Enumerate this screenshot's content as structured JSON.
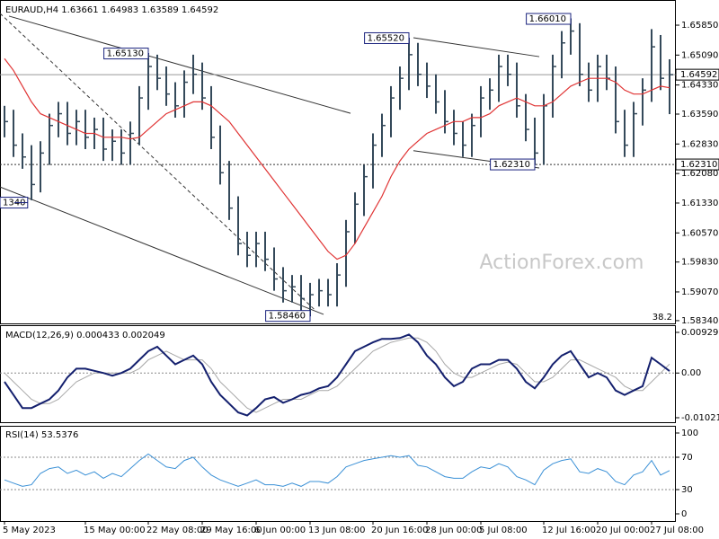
{
  "chart_data": {
    "type": "ohlc",
    "title": "EURAUD,H4  1.63661 1.64983 1.63589 1.64592",
    "watermark": "ActionForex.com",
    "fib_label": "38.2",
    "bar_color": "#34495a",
    "categories": [
      "5 May 2023",
      null,
      null,
      null,
      null,
      null,
      null,
      null,
      null,
      "15 May 00:00",
      null,
      null,
      null,
      null,
      null,
      null,
      "22 May 08:00",
      null,
      null,
      null,
      null,
      null,
      "29 May 16:00",
      null,
      null,
      null,
      null,
      null,
      "6 Jun 00:00",
      null,
      null,
      null,
      null,
      null,
      "13 Jun 08:00",
      null,
      null,
      null,
      null,
      null,
      null,
      "20 Jun 16:00",
      null,
      null,
      null,
      null,
      null,
      "28 Jun 00:00",
      null,
      null,
      null,
      null,
      null,
      "5 Jul 08:00",
      null,
      null,
      null,
      null,
      null,
      null,
      "12 Jul 16:00",
      null,
      null,
      null,
      null,
      null,
      "20 Jul 00:00",
      null,
      null,
      null,
      null,
      null,
      "27 Jul 08:00",
      null,
      null
    ],
    "high": [
      1.638,
      1.637,
      1.631,
      1.628,
      1.629,
      1.636,
      1.639,
      1.639,
      1.637,
      1.637,
      1.635,
      1.635,
      1.632,
      1.632,
      1.634,
      1.643,
      1.6513,
      1.651,
      1.648,
      1.644,
      1.647,
      1.651,
      1.649,
      1.643,
      1.633,
      1.624,
      1.615,
      1.606,
      1.606,
      1.606,
      1.602,
      1.597,
      1.595,
      1.595,
      1.593,
      1.594,
      1.594,
      1.598,
      1.609,
      1.616,
      1.623,
      1.631,
      1.636,
      1.643,
      1.648,
      1.6552,
      1.654,
      1.649,
      1.646,
      1.642,
      1.637,
      1.634,
      1.636,
      1.643,
      1.645,
      1.651,
      1.651,
      1.649,
      1.641,
      1.635,
      1.641,
      1.651,
      1.657,
      1.6601,
      1.659,
      1.649,
      1.651,
      1.651,
      1.648,
      1.637,
      1.639,
      1.645,
      1.6575,
      1.656,
      1.64983
    ],
    "low": [
      1.63,
      1.625,
      1.622,
      1.614,
      1.616,
      1.623,
      1.63,
      1.628,
      1.628,
      1.627,
      1.627,
      1.624,
      1.624,
      1.623,
      1.623,
      1.628,
      1.637,
      1.642,
      1.638,
      1.635,
      1.635,
      1.641,
      1.637,
      1.627,
      1.618,
      1.609,
      1.6,
      1.597,
      1.597,
      1.596,
      1.591,
      1.588,
      1.588,
      1.586,
      1.5846,
      1.587,
      1.587,
      1.587,
      1.592,
      1.603,
      1.61,
      1.617,
      1.625,
      1.63,
      1.637,
      1.642,
      1.643,
      1.64,
      1.636,
      1.631,
      1.628,
      1.625,
      1.625,
      1.63,
      1.637,
      1.639,
      1.643,
      1.635,
      1.629,
      1.6231,
      1.623,
      1.635,
      1.645,
      1.651,
      1.643,
      1.639,
      1.639,
      1.642,
      1.631,
      1.625,
      1.625,
      1.633,
      1.639,
      1.642,
      1.63589
    ],
    "close": [
      1.634,
      1.628,
      1.625,
      1.618,
      1.626,
      1.633,
      1.636,
      1.631,
      1.634,
      1.63,
      1.632,
      1.627,
      1.629,
      1.626,
      1.631,
      1.64,
      1.648,
      1.645,
      1.641,
      1.638,
      1.644,
      1.646,
      1.64,
      1.63,
      1.621,
      1.612,
      1.603,
      1.6,
      1.603,
      1.599,
      1.594,
      1.591,
      1.592,
      1.589,
      1.59,
      1.591,
      1.59,
      1.595,
      1.606,
      1.613,
      1.62,
      1.628,
      1.633,
      1.64,
      1.645,
      1.651,
      1.646,
      1.643,
      1.639,
      1.634,
      1.631,
      1.628,
      1.633,
      1.64,
      1.642,
      1.648,
      1.646,
      1.638,
      1.632,
      1.626,
      1.638,
      1.648,
      1.654,
      1.657,
      1.646,
      1.642,
      1.648,
      1.645,
      1.634,
      1.628,
      1.636,
      1.642,
      1.653,
      1.645,
      1.64592
    ],
    "ma": {
      "color": "#e03434",
      "values": [
        1.65,
        1.647,
        1.643,
        1.639,
        1.636,
        1.635,
        1.634,
        1.633,
        1.632,
        1.631,
        1.631,
        1.63,
        1.63,
        1.63,
        1.6296,
        1.63,
        1.632,
        1.634,
        1.636,
        1.637,
        1.638,
        1.639,
        1.639,
        1.638,
        1.636,
        1.634,
        1.631,
        1.628,
        1.625,
        1.622,
        1.619,
        1.616,
        1.613,
        1.61,
        1.607,
        1.604,
        1.601,
        1.599,
        1.6,
        1.603,
        1.607,
        1.611,
        1.615,
        1.62,
        1.624,
        1.627,
        1.629,
        1.631,
        1.632,
        1.633,
        1.634,
        1.634,
        1.635,
        1.635,
        1.636,
        1.638,
        1.639,
        1.64,
        1.639,
        1.638,
        1.638,
        1.639,
        1.641,
        1.643,
        1.644,
        1.645,
        1.645,
        1.645,
        1.644,
        1.642,
        1.641,
        1.641,
        1.642,
        1.643,
        1.6426
      ]
    },
    "ylim": [
      1.5827,
      1.6649
    ],
    "yticks": [
      {
        "value": 1.6585,
        "label": "1.65850"
      },
      {
        "value": 1.6509,
        "label": "1.65090"
      },
      {
        "value": 1.6433,
        "label": "1.64330"
      },
      {
        "value": 1.6359,
        "label": "1.63590"
      },
      {
        "value": 1.6283,
        "label": "1.62830"
      },
      {
        "value": 1.6208,
        "label": "1.62080"
      },
      {
        "value": 1.6133,
        "label": "1.61330"
      },
      {
        "value": 1.6057,
        "label": "1.60570"
      },
      {
        "value": 1.5983,
        "label": "1.59830"
      },
      {
        "value": 1.5907,
        "label": "1.59070"
      },
      {
        "value": 1.5834,
        "label": "1.58340"
      }
    ],
    "price_marks": [
      {
        "value": 1.64592,
        "label": "1.64592",
        "style": "solid"
      },
      {
        "value": 1.6231,
        "label": "1.62310",
        "style": "dotted"
      }
    ],
    "annotations": [
      {
        "index": 63,
        "value": 1.6601,
        "label": "1.66010"
      },
      {
        "index": 45,
        "value": 1.6552,
        "label": "1.65520"
      },
      {
        "index": 16,
        "value": 1.6513,
        "label": "1.65130"
      },
      {
        "index": 59,
        "value": 1.6231,
        "label": "1.62310"
      },
      {
        "index": 34,
        "value": 1.5846,
        "label": "1.58460"
      },
      {
        "index": 1,
        "value": 1.6134,
        "label": "1340"
      }
    ],
    "trendlines": [
      {
        "x": [
          0.5,
          38.5
        ],
        "y": [
          1.6608,
          1.6361
        ],
        "style": "solid"
      },
      {
        "x": [
          -0.5,
          35.5
        ],
        "y": [
          1.6174,
          1.585
        ],
        "style": "solid"
      },
      {
        "x": [
          -0.5,
          34.5
        ],
        "y": [
          1.6615,
          1.5862
        ],
        "style": "dashed"
      },
      {
        "x": [
          45.5,
          59.5
        ],
        "y": [
          1.6553,
          1.6505
        ],
        "style": "solid"
      },
      {
        "x": [
          45.5,
          59.5
        ],
        "y": [
          1.6266,
          1.6222
        ],
        "style": "solid"
      }
    ],
    "macd": {
      "title": "MACD(12,26,9) 0.000433 0.002049",
      "ylim": [
        -0.01124,
        0.01093
      ],
      "yticks": [
        0.009291,
        {
          "value": 0,
          "label": "0.00"
        },
        -0.010211
      ],
      "series": [
        {
          "name": "MACD",
          "color": "#14206e",
          "values": [
            -0.002,
            -0.005,
            -0.008,
            -0.008,
            -0.007,
            -0.006,
            -0.004,
            -0.001,
            0.001,
            0.001,
            0.0005,
            0.0,
            -0.0006,
            0.0,
            0.001,
            0.003,
            0.005,
            0.006,
            0.004,
            0.002,
            0.003,
            0.004,
            0.002,
            -0.002,
            -0.005,
            -0.007,
            -0.009,
            -0.0097,
            -0.008,
            -0.006,
            -0.0055,
            -0.0068,
            -0.006,
            -0.005,
            -0.0045,
            -0.0035,
            -0.003,
            -0.001,
            0.002,
            0.005,
            0.006,
            0.007,
            0.0078,
            0.0078,
            0.008,
            0.0088,
            0.007,
            0.004,
            0.002,
            -0.001,
            -0.003,
            -0.002,
            0.001,
            0.002,
            0.002,
            0.003,
            0.003,
            0.001,
            -0.002,
            -0.0035,
            -0.001,
            0.002,
            0.004,
            0.005,
            0.002,
            -0.001,
            0.0,
            -0.001,
            -0.004,
            -0.005,
            -0.004,
            -0.003,
            0.0035,
            0.002,
            0.000433
          ]
        },
        {
          "name": "Signal",
          "color": "#a8a8a8",
          "values": [
            0.0,
            -0.002,
            -0.004,
            -0.006,
            -0.007,
            -0.007,
            -0.006,
            -0.004,
            -0.002,
            -0.001,
            0.0,
            0.0,
            0.0,
            0.0,
            0.0,
            0.001,
            0.003,
            0.004,
            0.005,
            0.004,
            0.003,
            0.003,
            0.003,
            0.001,
            -0.002,
            -0.004,
            -0.006,
            -0.008,
            -0.009,
            -0.008,
            -0.007,
            -0.006,
            -0.006,
            -0.006,
            -0.005,
            -0.004,
            -0.004,
            -0.003,
            -0.001,
            0.001,
            0.003,
            0.005,
            0.006,
            0.007,
            0.0075,
            0.008,
            0.008,
            0.007,
            0.005,
            0.002,
            0.0,
            -0.001,
            -0.001,
            0.0,
            0.001,
            0.002,
            0.0025,
            0.002,
            0.0,
            -0.002,
            -0.002,
            -0.001,
            0.001,
            0.003,
            0.003,
            0.002,
            0.001,
            0.0,
            -0.001,
            -0.003,
            -0.004,
            -0.004,
            -0.002,
            0.0,
            0.002049
          ]
        }
      ]
    },
    "rsi": {
      "title": "RSI(14) 53.5376",
      "ylim": [
        -8.9,
        108.9
      ],
      "yticks": [
        100,
        70,
        30,
        0
      ],
      "series": [
        {
          "name": "RSI",
          "color": "#3a90d6",
          "values": [
            42,
            38,
            34,
            36,
            50,
            56,
            58,
            50,
            54,
            48,
            52,
            44,
            50,
            46,
            56,
            66,
            74,
            66,
            58,
            56,
            66,
            70,
            58,
            48,
            42,
            38,
            34,
            38,
            42,
            36,
            36,
            34,
            38,
            34,
            40,
            40,
            38,
            46,
            58,
            62,
            66,
            68,
            70,
            72,
            70,
            72,
            60,
            58,
            52,
            46,
            44,
            44,
            52,
            58,
            56,
            62,
            58,
            46,
            42,
            36,
            54,
            62,
            66,
            68,
            52,
            50,
            56,
            52,
            40,
            36,
            48,
            52,
            66,
            48,
            53.5376
          ]
        }
      ]
    }
  }
}
